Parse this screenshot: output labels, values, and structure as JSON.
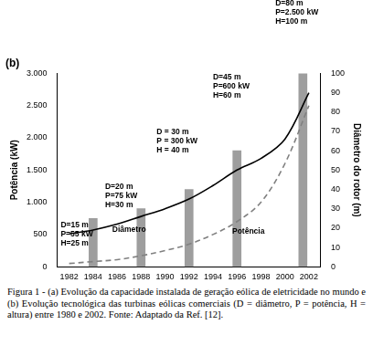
{
  "chart_data": {
    "type": "bar",
    "title": "(b)",
    "y_label": "Potência (kW)",
    "y2_label": "Diâmetro do rotor (m)",
    "xlim": [
      1981,
      2003
    ],
    "xticks": [
      1982,
      1984,
      1986,
      1988,
      1990,
      1992,
      1994,
      1996,
      1998,
      2000,
      2002
    ],
    "ylim": [
      0,
      3000
    ],
    "yticks": [
      0,
      500,
      {
        "value": 1000,
        "label": "1.000"
      },
      {
        "value": 1500,
        "label": "1.500"
      },
      {
        "value": 2000,
        "label": "2.000"
      },
      {
        "value": 2500,
        "label": "2.500"
      },
      {
        "value": 3000,
        "label": "3.000"
      }
    ],
    "y2lim": [
      0,
      100
    ],
    "y2ticks": [
      0,
      10,
      20,
      30,
      40,
      50,
      60,
      70,
      80,
      90,
      100
    ],
    "grid": false,
    "series": [
      {
        "type": "bar",
        "axis": "y2",
        "color": "#9e9e9e",
        "x": [
          1984,
          1988,
          1992,
          1996,
          2001.5
        ],
        "values": [
          25,
          30,
          40,
          60,
          100
        ]
      },
      {
        "name": "Diâmetro",
        "type": "line",
        "axis": "y2",
        "color": "#000000",
        "line_style": "solid",
        "marker": "none",
        "x": [
          1982,
          1984,
          1986,
          1988,
          1990,
          1992,
          1994,
          1996,
          1998,
          2000,
          2002
        ],
        "values": [
          17,
          19,
          22,
          26,
          30,
          35,
          42,
          50,
          56,
          66,
          90
        ]
      },
      {
        "name": "Potência",
        "type": "line",
        "color": "#808080",
        "line_style": "dashed",
        "marker": "none",
        "x": [
          1982,
          1984,
          1986,
          1988,
          1990,
          1992,
          1994,
          1996,
          1998,
          2000,
          2002
        ],
        "values": [
          50,
          80,
          110,
          170,
          250,
          350,
          500,
          700,
          1000,
          1600,
          2500
        ]
      }
    ],
    "annotations": [
      {
        "text": [
          "D=15 m",
          "P=55 kW",
          "H=25 m"
        ],
        "x": 1981.3,
        "y": 700
      },
      {
        "text": [
          "D=20 m",
          "P=75 kW",
          "H=30 m"
        ],
        "x": 1985,
        "y": 1300
      },
      {
        "text": [
          "D = 30 m",
          "P = 300 kW",
          "H = 40 m"
        ],
        "x": 1989.3,
        "y": 2150
      },
      {
        "text": [
          "D=45 m",
          "P=600 kW",
          "H=60 m"
        ],
        "x": 1994,
        "y": 3000
      },
      {
        "text": [
          "D=80 m",
          "P=2.500 kW",
          "H=100 m"
        ],
        "x": 1999.2,
        "y": 4150
      },
      {
        "text": [
          "Diâmetro"
        ],
        "x": 1985.6,
        "y": 640
      },
      {
        "text": [
          "Potência"
        ],
        "x": 1995.6,
        "y": 600
      }
    ]
  },
  "caption": "Figura 1 - (a) Evolução da capacidade instalada de geração eólica de eletricidade no mundo e (b) Evolução tecnológica das turbinas eólicas comerciais (D = diâmetro, P = potência, H = altura) entre 1980 e 2002. Fonte: Adaptado da Ref. [12]."
}
